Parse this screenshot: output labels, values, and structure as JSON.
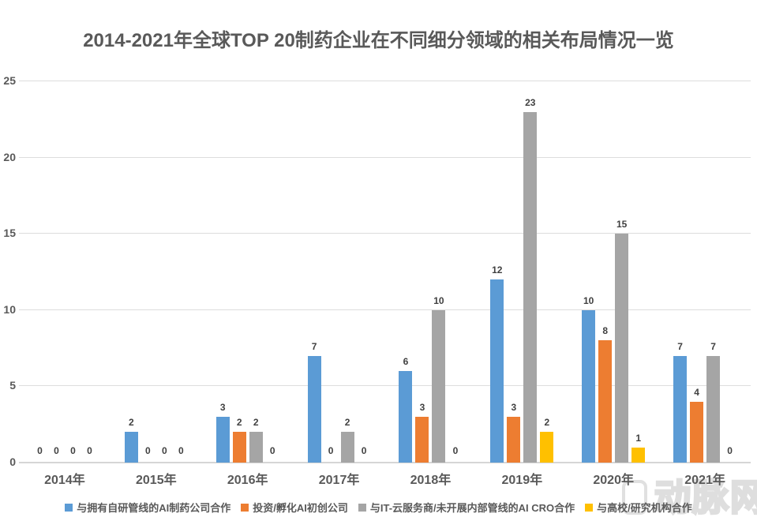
{
  "page": {
    "background": "#ffffff"
  },
  "chart_data": {
    "type": "bar",
    "title": "2014-2021年全球TOP 20制药企业在不同细分领域的相关布局情况一览",
    "categories": [
      "2014年",
      "2015年",
      "2016年",
      "2017年",
      "2018年",
      "2019年",
      "2020年",
      "2021年"
    ],
    "series": [
      {
        "name": "与拥有自研管线的AI制药公司合作",
        "color": "#5B9BD5",
        "values": [
          0,
          2,
          3,
          7,
          6,
          12,
          10,
          7
        ]
      },
      {
        "name": "投资/孵化AI初创公司",
        "color": "#ED7D31",
        "values": [
          0,
          0,
          2,
          0,
          3,
          3,
          8,
          4
        ]
      },
      {
        "name": "与IT-云服务商/未开展内部管线的AI CRO合作",
        "color": "#A5A5A5",
        "values": [
          0,
          0,
          2,
          2,
          10,
          23,
          15,
          7
        ]
      },
      {
        "name": "与高校/研究机构合作",
        "color": "#FFC000",
        "values": [
          0,
          0,
          0,
          0,
          0,
          2,
          1,
          0
        ]
      }
    ],
    "xlabel": "",
    "ylabel": "",
    "ylim": [
      0,
      25
    ],
    "yticks": [
      0,
      5,
      10,
      15,
      20,
      25
    ],
    "grid": true,
    "data_labels": true,
    "legend_position": "bottom",
    "gridline_color": "#dddddd",
    "text_color": "#595959"
  },
  "watermark": {
    "text": "动脉网"
  }
}
